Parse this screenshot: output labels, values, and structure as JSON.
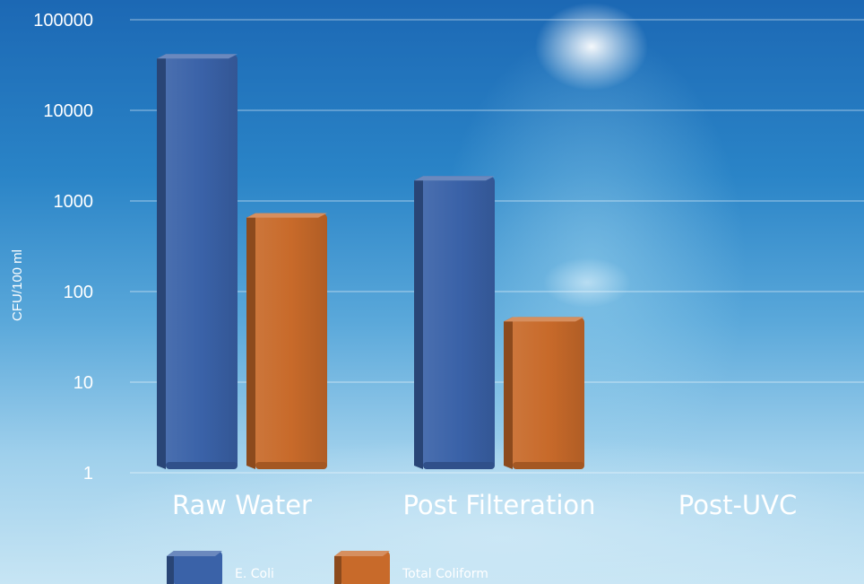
{
  "chart_data": {
    "type": "bar",
    "ylabel": "CFU/100 ml",
    "yscale": "log",
    "ylim": [
      1,
      100000
    ],
    "yticks": [
      "1",
      "10",
      "100",
      "1000",
      "10000",
      "100000"
    ],
    "categories": [
      "Raw Water",
      "Post Filteration",
      "Post-UVC"
    ],
    "series": [
      {
        "name": "E. Coli",
        "values": [
          40000,
          1800,
          null
        ],
        "color": "#3a62a8"
      },
      {
        "name": "Total Coliform",
        "values": [
          700,
          50,
          null
        ],
        "color": "#c86a2a"
      }
    ],
    "grid": true,
    "legend_position": "bottom-left"
  }
}
